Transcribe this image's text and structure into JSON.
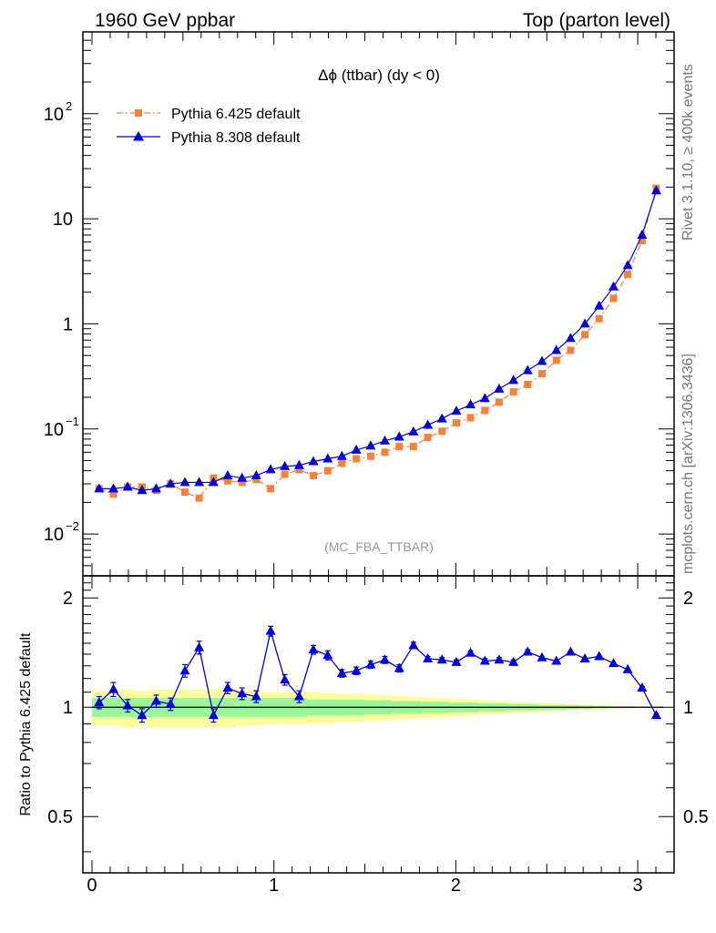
{
  "header": {
    "left": "1960 GeV ppbar",
    "right": "Top (parton level)"
  },
  "side_labels": {
    "rivet": "Rivet 3.1.10, ≥ 400k events",
    "mcplots": "mcplots.cern.ch [arXiv:1306.3436]"
  },
  "colors": {
    "pythia6": "#f4823a",
    "pythia8": "#0000dd",
    "band_yellow": "#fdfd9d",
    "band_green": "#99f799"
  },
  "chart_data": [
    {
      "type": "line",
      "panel": "main",
      "title": "Δϕ (ttbar) (dy < 0)",
      "watermark": "(MC_FBA_TTBAR)",
      "xlabel": "",
      "ylabel": "",
      "yscale": "log",
      "xlim": [
        -0.05,
        3.2
      ],
      "ylim": [
        0.004,
        600
      ],
      "legend_position": "top-left",
      "y_ticks": [
        {
          "value": 0.01,
          "base": "10",
          "exp": "−2"
        },
        {
          "value": 0.1,
          "base": "10",
          "exp": "−1"
        },
        {
          "value": 1,
          "base": "1",
          "exp": ""
        },
        {
          "value": 10,
          "base": "10",
          "exp": ""
        },
        {
          "value": 100,
          "base": "10",
          "exp": "2"
        }
      ],
      "x": [
        0.039,
        0.118,
        0.196,
        0.275,
        0.353,
        0.432,
        0.511,
        0.589,
        0.668,
        0.746,
        0.825,
        0.903,
        0.982,
        1.06,
        1.139,
        1.217,
        1.296,
        1.374,
        1.453,
        1.532,
        1.61,
        1.689,
        1.767,
        1.846,
        1.924,
        2.003,
        2.081,
        2.16,
        2.238,
        2.317,
        2.395,
        2.474,
        2.553,
        2.631,
        2.71,
        2.788,
        2.867,
        2.945,
        3.024,
        3.102
      ],
      "series": [
        {
          "name": "Pythia 6.425 default",
          "marker": "square",
          "line": "dash-dot",
          "values": [
            0.027,
            0.024,
            0.028,
            0.028,
            0.026,
            0.03,
            0.025,
            0.022,
            0.034,
            0.032,
            0.031,
            0.033,
            0.027,
            0.037,
            0.041,
            0.036,
            0.04,
            0.047,
            0.052,
            0.055,
            0.06,
            0.068,
            0.068,
            0.083,
            0.095,
            0.114,
            0.128,
            0.15,
            0.18,
            0.225,
            0.265,
            0.335,
            0.45,
            0.56,
            0.79,
            1.12,
            1.75,
            2.95,
            6.2,
            19.5
          ]
        },
        {
          "name": "Pythia 8.308 default",
          "marker": "triangle",
          "line": "solid",
          "values": [
            0.027,
            0.027,
            0.028,
            0.026,
            0.027,
            0.03,
            0.031,
            0.031,
            0.031,
            0.036,
            0.034,
            0.036,
            0.041,
            0.044,
            0.045,
            0.049,
            0.052,
            0.055,
            0.063,
            0.069,
            0.077,
            0.084,
            0.094,
            0.109,
            0.125,
            0.148,
            0.17,
            0.195,
            0.24,
            0.29,
            0.36,
            0.44,
            0.56,
            0.73,
            1.0,
            1.48,
            2.25,
            3.6,
            7.0,
            18.5
          ]
        }
      ]
    },
    {
      "type": "line",
      "panel": "ratio",
      "ylabel": "Ratio to Pythia 6.425 default",
      "xlabel": "",
      "xlim": [
        -0.05,
        3.2
      ],
      "ylim": [
        0.35,
        2.3
      ],
      "y_ticks": [
        0.5,
        1,
        2
      ],
      "x_ticks": [
        0,
        1,
        2,
        3
      ],
      "reference": 1,
      "x": [
        0.039,
        0.118,
        0.196,
        0.275,
        0.353,
        0.432,
        0.511,
        0.589,
        0.668,
        0.746,
        0.825,
        0.903,
        0.982,
        1.06,
        1.139,
        1.217,
        1.296,
        1.374,
        1.453,
        1.532,
        1.61,
        1.689,
        1.767,
        1.846,
        1.924,
        2.003,
        2.081,
        2.16,
        2.238,
        2.317,
        2.395,
        2.474,
        2.553,
        2.631,
        2.71,
        2.788,
        2.867,
        2.945,
        3.024,
        3.102
      ],
      "series": [
        {
          "name": "Pythia 8.308 default",
          "values": [
            1.03,
            1.12,
            1.01,
            0.95,
            1.04,
            1.02,
            1.26,
            1.46,
            0.95,
            1.13,
            1.09,
            1.07,
            1.62,
            1.19,
            1.07,
            1.44,
            1.39,
            1.24,
            1.26,
            1.31,
            1.35,
            1.28,
            1.48,
            1.36,
            1.35,
            1.33,
            1.41,
            1.34,
            1.35,
            1.33,
            1.42,
            1.37,
            1.34,
            1.42,
            1.36,
            1.38,
            1.32,
            1.27,
            1.13,
            0.95
          ],
          "errors": [
            0.04,
            0.05,
            0.04,
            0.04,
            0.04,
            0.04,
            0.05,
            0.06,
            0.04,
            0.04,
            0.04,
            0.04,
            0.05,
            0.04,
            0.04,
            0.04,
            0.04,
            0.03,
            0.03,
            0.03,
            0.03,
            0.03,
            0.03,
            0.02,
            0.02,
            0.02,
            0.02,
            0.02,
            0.02,
            0.02,
            0.02,
            0.01,
            0.01,
            0.01,
            0.01,
            0.01,
            0.01,
            0.01,
            0.01,
            0.01
          ]
        }
      ],
      "band_green_halfwidth": [
        0.06,
        0.06,
        0.06,
        0.06,
        0.06,
        0.06,
        0.06,
        0.06,
        0.06,
        0.06,
        0.06,
        0.06,
        0.06,
        0.06,
        0.06,
        0.05,
        0.05,
        0.05,
        0.05,
        0.045,
        0.045,
        0.04,
        0.04,
        0.035,
        0.035,
        0.03,
        0.03,
        0.025,
        0.025,
        0.02,
        0.02,
        0.015,
        0.015,
        0.012,
        0.01,
        0.008,
        0.006,
        0.005,
        0.004,
        0.003
      ],
      "band_yellow_halfwidth": [
        0.11,
        0.11,
        0.12,
        0.11,
        0.12,
        0.12,
        0.12,
        0.12,
        0.12,
        0.12,
        0.11,
        0.11,
        0.1,
        0.1,
        0.1,
        0.1,
        0.095,
        0.09,
        0.09,
        0.085,
        0.08,
        0.075,
        0.07,
        0.065,
        0.06,
        0.055,
        0.05,
        0.045,
        0.04,
        0.035,
        0.03,
        0.027,
        0.024,
        0.02,
        0.017,
        0.014,
        0.011,
        0.008,
        0.006,
        0.004
      ]
    }
  ]
}
